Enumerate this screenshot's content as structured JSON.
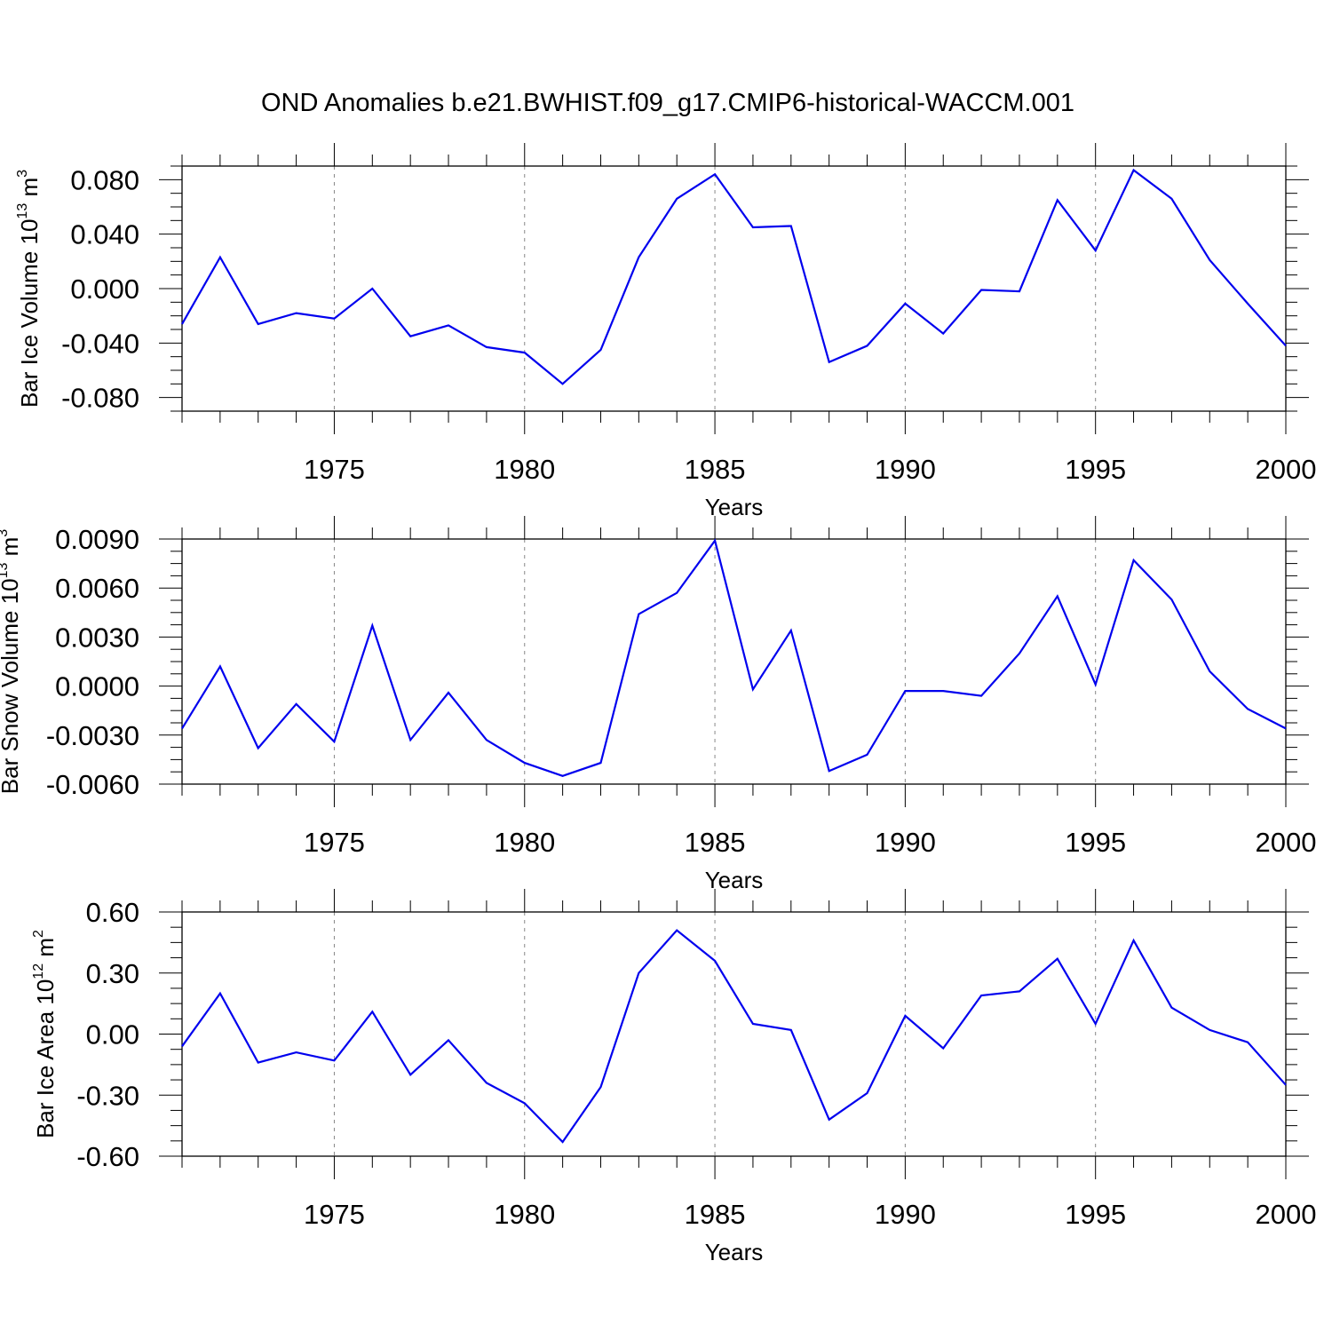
{
  "figure": {
    "title": "OND Anomalies b.e21.BWHIST.f09_g17.CMIP6-historical-WACCM.001"
  },
  "chart_data": [
    {
      "type": "line",
      "title": "",
      "xlabel": "Years",
      "ylabel": {
        "base": "Bar Ice Volume 10",
        "exp1": "13",
        "mid": " m",
        "exp2": "3"
      },
      "xlim": [
        1971,
        2000
      ],
      "ylim": [
        -0.09,
        0.09
      ],
      "yticks": [
        "-0.080",
        "-0.040",
        "0.000",
        "0.040",
        "0.080"
      ],
      "ytick_values": [
        -0.08,
        -0.04,
        0.0,
        0.04,
        0.08
      ],
      "xticks": [
        1975,
        1980,
        1985,
        1990,
        1995,
        2000
      ],
      "grid": "vertical dashed at major x ticks",
      "line_color": "#0000ee",
      "series": [
        {
          "name": "Bar Ice Volume",
          "x": [
            1971,
            1972,
            1973,
            1974,
            1975,
            1976,
            1977,
            1978,
            1979,
            1980,
            1981,
            1982,
            1983,
            1984,
            1985,
            1986,
            1987,
            1988,
            1989,
            1990,
            1991,
            1992,
            1993,
            1994,
            1995,
            1996,
            1997,
            1998,
            1999,
            2000
          ],
          "values": [
            -0.026,
            0.023,
            -0.026,
            -0.018,
            -0.022,
            0.0,
            -0.035,
            -0.027,
            -0.043,
            -0.047,
            -0.07,
            -0.045,
            0.023,
            0.066,
            0.084,
            0.045,
            0.046,
            -0.054,
            -0.042,
            -0.011,
            -0.033,
            -0.001,
            -0.002,
            0.065,
            0.028,
            0.087,
            0.066,
            0.021,
            -0.011,
            -0.042
          ]
        }
      ]
    },
    {
      "type": "line",
      "title": "",
      "xlabel": "Years",
      "ylabel": {
        "base": "Bar Snow Volume 10",
        "exp1": "13",
        "mid": " m",
        "exp2": "3"
      },
      "xlim": [
        1971,
        2000
      ],
      "ylim": [
        -0.006,
        0.009
      ],
      "yticks": [
        "-0.0060",
        "-0.0030",
        "0.0000",
        "0.0030",
        "0.0060",
        "0.0090"
      ],
      "ytick_values": [
        -0.006,
        -0.003,
        0.0,
        0.003,
        0.006,
        0.009
      ],
      "xticks": [
        1975,
        1980,
        1985,
        1990,
        1995,
        2000
      ],
      "grid": "vertical dashed at major x ticks",
      "line_color": "#0000ee",
      "series": [
        {
          "name": "Bar Snow Volume",
          "x": [
            1971,
            1972,
            1973,
            1974,
            1975,
            1976,
            1977,
            1978,
            1979,
            1980,
            1981,
            1982,
            1983,
            1984,
            1985,
            1986,
            1987,
            1988,
            1989,
            1990,
            1991,
            1992,
            1993,
            1994,
            1995,
            1996,
            1997,
            1998,
            1999,
            2000
          ],
          "values": [
            -0.0026,
            0.0012,
            -0.0038,
            -0.0011,
            -0.0034,
            0.0037,
            -0.0033,
            -0.0004,
            -0.0033,
            -0.0047,
            -0.0055,
            -0.0047,
            0.0044,
            0.0057,
            0.0089,
            -0.0002,
            0.0034,
            -0.0052,
            -0.0042,
            -0.0003,
            -0.0003,
            -0.0006,
            0.002,
            0.0055,
            0.0001,
            0.0077,
            0.0053,
            0.0009,
            -0.0014,
            -0.0026
          ]
        }
      ]
    },
    {
      "type": "line",
      "title": "",
      "xlabel": "Years",
      "ylabel": {
        "base": "Bar Ice Area 10",
        "exp1": "12",
        "mid": " m",
        "exp2": "2"
      },
      "xlim": [
        1971,
        2000
      ],
      "ylim": [
        -0.6,
        0.6
      ],
      "yticks": [
        "-0.60",
        "-0.30",
        "0.00",
        "0.30",
        "0.60"
      ],
      "ytick_values": [
        -0.6,
        -0.3,
        0.0,
        0.3,
        0.6
      ],
      "xticks": [
        1975,
        1980,
        1985,
        1990,
        1995,
        2000
      ],
      "grid": "vertical dashed at major x ticks",
      "line_color": "#0000ee",
      "series": [
        {
          "name": "Bar Ice Area",
          "x": [
            1971,
            1972,
            1973,
            1974,
            1975,
            1976,
            1977,
            1978,
            1979,
            1980,
            1981,
            1982,
            1983,
            1984,
            1985,
            1986,
            1987,
            1988,
            1989,
            1990,
            1991,
            1992,
            1993,
            1994,
            1995,
            1996,
            1997,
            1998,
            1999,
            2000
          ],
          "values": [
            -0.06,
            0.2,
            -0.14,
            -0.09,
            -0.13,
            0.11,
            -0.2,
            -0.03,
            -0.24,
            -0.34,
            -0.53,
            -0.26,
            0.3,
            0.51,
            0.36,
            0.05,
            0.02,
            -0.42,
            -0.29,
            0.09,
            -0.07,
            0.19,
            0.21,
            0.37,
            0.05,
            0.46,
            0.13,
            0.02,
            -0.04,
            -0.25
          ]
        }
      ]
    }
  ]
}
